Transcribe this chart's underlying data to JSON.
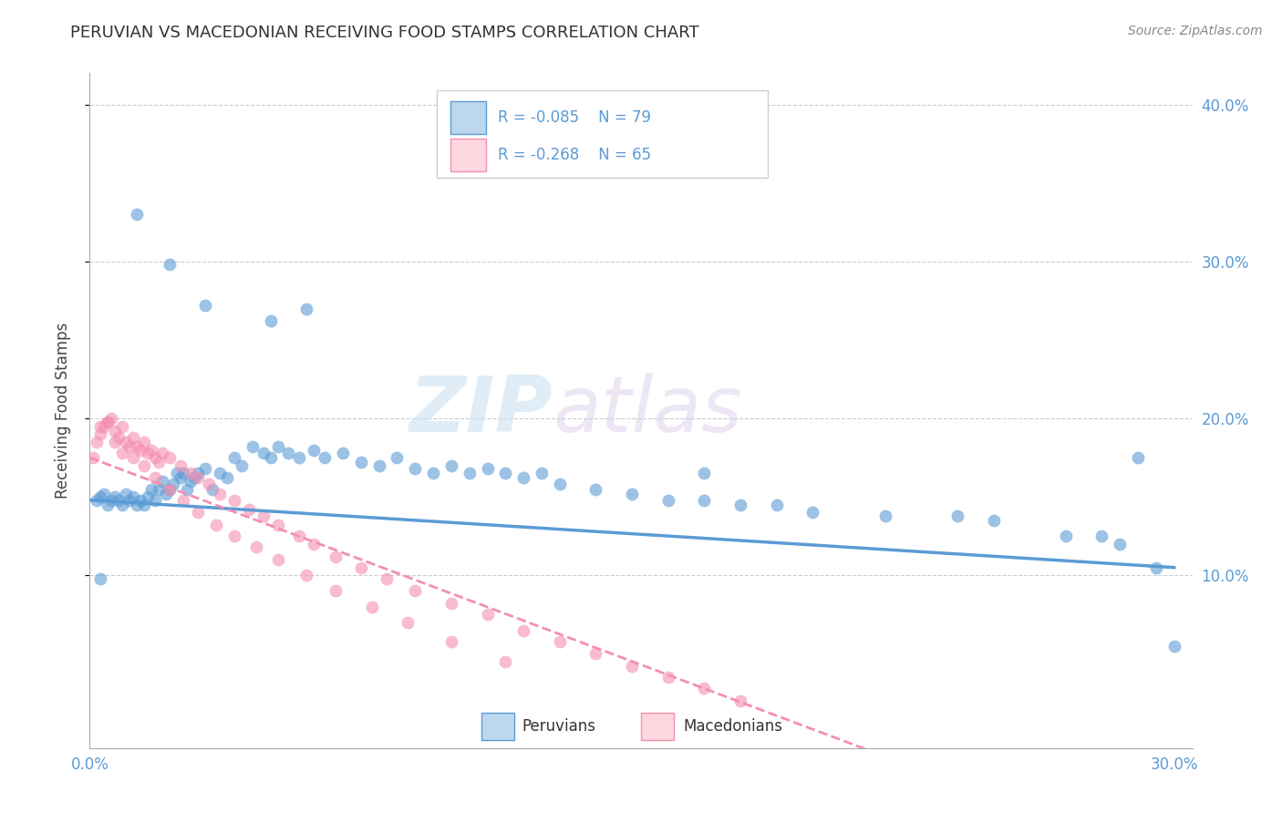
{
  "title": "PERUVIAN VS MACEDONIAN RECEIVING FOOD STAMPS CORRELATION CHART",
  "source": "Source: ZipAtlas.com",
  "ylabel": "Receiving Food Stamps",
  "blue_color": "#5B9BD5",
  "pink_color": "#F48FB1",
  "blue_light": "#BDD7EE",
  "pink_light": "#FFD7DE",
  "xlim": [
    0.0,
    0.305
  ],
  "ylim": [
    -0.01,
    0.42
  ],
  "peruvians_x": [
    0.002,
    0.003,
    0.004,
    0.005,
    0.006,
    0.007,
    0.008,
    0.009,
    0.01,
    0.011,
    0.012,
    0.013,
    0.014,
    0.015,
    0.016,
    0.017,
    0.018,
    0.019,
    0.02,
    0.021,
    0.022,
    0.023,
    0.024,
    0.025,
    0.026,
    0.027,
    0.028,
    0.029,
    0.03,
    0.032,
    0.034,
    0.036,
    0.038,
    0.04,
    0.042,
    0.045,
    0.048,
    0.05,
    0.052,
    0.055,
    0.058,
    0.062,
    0.065,
    0.07,
    0.075,
    0.08,
    0.085,
    0.09,
    0.095,
    0.1,
    0.105,
    0.11,
    0.115,
    0.12,
    0.125,
    0.13,
    0.14,
    0.15,
    0.16,
    0.17,
    0.18,
    0.19,
    0.2,
    0.22,
    0.24,
    0.25,
    0.27,
    0.28,
    0.285,
    0.295,
    0.013,
    0.022,
    0.032,
    0.05,
    0.06,
    0.17,
    0.29,
    0.3,
    0.003
  ],
  "peruvians_y": [
    0.148,
    0.15,
    0.152,
    0.145,
    0.148,
    0.15,
    0.148,
    0.145,
    0.152,
    0.148,
    0.15,
    0.145,
    0.148,
    0.145,
    0.15,
    0.155,
    0.148,
    0.155,
    0.16,
    0.152,
    0.155,
    0.158,
    0.165,
    0.162,
    0.165,
    0.155,
    0.16,
    0.162,
    0.165,
    0.168,
    0.155,
    0.165,
    0.162,
    0.175,
    0.17,
    0.182,
    0.178,
    0.175,
    0.182,
    0.178,
    0.175,
    0.18,
    0.175,
    0.178,
    0.172,
    0.17,
    0.175,
    0.168,
    0.165,
    0.17,
    0.165,
    0.168,
    0.165,
    0.162,
    0.165,
    0.158,
    0.155,
    0.152,
    0.148,
    0.148,
    0.145,
    0.145,
    0.14,
    0.138,
    0.138,
    0.135,
    0.125,
    0.125,
    0.12,
    0.105,
    0.33,
    0.298,
    0.272,
    0.262,
    0.27,
    0.165,
    0.175,
    0.055,
    0.098
  ],
  "macedonians_x": [
    0.001,
    0.002,
    0.003,
    0.004,
    0.005,
    0.006,
    0.007,
    0.008,
    0.009,
    0.01,
    0.011,
    0.012,
    0.013,
    0.014,
    0.015,
    0.016,
    0.017,
    0.018,
    0.019,
    0.02,
    0.022,
    0.025,
    0.028,
    0.03,
    0.033,
    0.036,
    0.04,
    0.044,
    0.048,
    0.052,
    0.058,
    0.062,
    0.068,
    0.075,
    0.082,
    0.09,
    0.1,
    0.11,
    0.12,
    0.13,
    0.14,
    0.15,
    0.16,
    0.17,
    0.18,
    0.003,
    0.005,
    0.007,
    0.009,
    0.012,
    0.015,
    0.018,
    0.022,
    0.026,
    0.03,
    0.035,
    0.04,
    0.046,
    0.052,
    0.06,
    0.068,
    0.078,
    0.088,
    0.1,
    0.115
  ],
  "macedonians_y": [
    0.175,
    0.185,
    0.19,
    0.195,
    0.198,
    0.2,
    0.192,
    0.188,
    0.195,
    0.185,
    0.182,
    0.188,
    0.182,
    0.18,
    0.185,
    0.178,
    0.18,
    0.175,
    0.172,
    0.178,
    0.175,
    0.17,
    0.165,
    0.162,
    0.158,
    0.152,
    0.148,
    0.142,
    0.138,
    0.132,
    0.125,
    0.12,
    0.112,
    0.105,
    0.098,
    0.09,
    0.082,
    0.075,
    0.065,
    0.058,
    0.05,
    0.042,
    0.035,
    0.028,
    0.02,
    0.195,
    0.198,
    0.185,
    0.178,
    0.175,
    0.17,
    0.162,
    0.155,
    0.148,
    0.14,
    0.132,
    0.125,
    0.118,
    0.11,
    0.1,
    0.09,
    0.08,
    0.07,
    0.058,
    0.045
  ]
}
